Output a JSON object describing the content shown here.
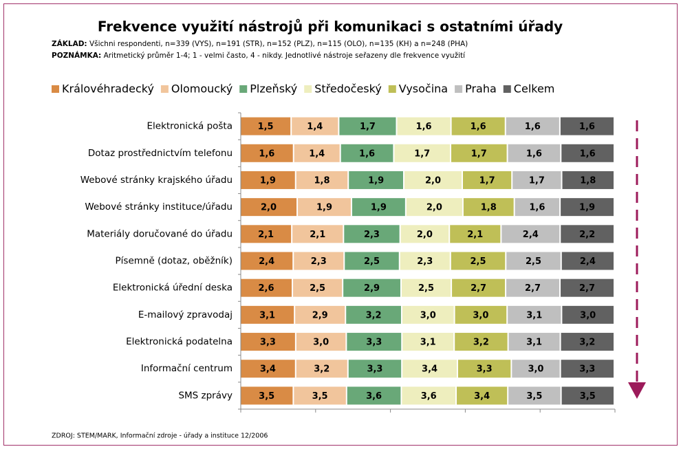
{
  "chart_data": {
    "type": "stacked-bar-100",
    "orientation": "horizontal",
    "title": "Frekvence využití nástrojů při komunikaci s ostatními úřady",
    "base_label": "ZÁKLAD:",
    "base": "Všichni respondenti, n=339 (VYS), n=191 (STR), n=152 (PLZ), n=115 (OLO), n=135 (KH) a n=248 (PHA)",
    "note_label": "POZNÁMKA:",
    "note": "Aritmetický průměr 1-4; 1 - velmi často, 4 - nikdy. Jednotlivé nástroje seřazeny dle frekvence využití",
    "source": "ZDROJ: STEM/MARK, Informační zdroje - úřady a instituce 12/2006",
    "categories": [
      "Elektronická pošta",
      "Dotaz prostřednictvím telefonu",
      "Webové stránky krajského úřadu",
      "Webové stránky instituce/úřadu",
      "Materiály doručované do úřadu",
      "Písemně (dotaz, oběžník)",
      "Elektronická úřední deska",
      "E-mailový zpravodaj",
      "Elektronická podatelna",
      "Informační centrum",
      "SMS zprávy"
    ],
    "xlim": [
      0,
      100
    ],
    "xticks": [
      0,
      20,
      40,
      60,
      80,
      100
    ],
    "series": [
      {
        "name": "Královéhradecký",
        "color": "#d98b45",
        "values": [
          1.5,
          1.6,
          1.9,
          2.0,
          2.1,
          2.4,
          2.6,
          3.1,
          3.3,
          3.4,
          3.5
        ],
        "value_labels": [
          "1,5",
          "1,6",
          "1,9",
          "2,0",
          "2,1",
          "2,4",
          "2,6",
          "3,1",
          "3,3",
          "3,4",
          "3,5"
        ]
      },
      {
        "name": "Olomoucký",
        "color": "#f1c59c",
        "values": [
          1.4,
          1.4,
          1.8,
          1.9,
          2.1,
          2.3,
          2.5,
          2.9,
          3.0,
          3.2,
          3.5
        ],
        "value_labels": [
          "1,4",
          "1,4",
          "1,8",
          "1,9",
          "2,1",
          "2,3",
          "2,5",
          "2,9",
          "3,0",
          "3,2",
          "3,5"
        ]
      },
      {
        "name": "Plzeňský",
        "color": "#69a878",
        "values": [
          1.7,
          1.6,
          1.9,
          1.9,
          2.3,
          2.5,
          2.9,
          3.2,
          3.3,
          3.3,
          3.6
        ],
        "value_labels": [
          "1,7",
          "1,6",
          "1,9",
          "1,9",
          "2,3",
          "2,5",
          "2,9",
          "3,2",
          "3,3",
          "3,3",
          "3,6"
        ]
      },
      {
        "name": "Středočeský",
        "color": "#eeeebe",
        "values": [
          1.6,
          1.7,
          2.0,
          2.0,
          2.0,
          2.3,
          2.5,
          3.0,
          3.1,
          3.4,
          3.6
        ],
        "value_labels": [
          "1,6",
          "1,7",
          "2,0",
          "2,0",
          "2,0",
          "2,3",
          "2,5",
          "3,0",
          "3,1",
          "3,4",
          "3,6"
        ]
      },
      {
        "name": "Vysočina",
        "color": "#bfbf57",
        "values": [
          1.6,
          1.7,
          1.7,
          1.8,
          2.1,
          2.5,
          2.7,
          3.0,
          3.2,
          3.3,
          3.4
        ],
        "value_labels": [
          "1,6",
          "1,7",
          "1,7",
          "1,8",
          "2,1",
          "2,5",
          "2,7",
          "3,0",
          "3,2",
          "3,3",
          "3,4"
        ]
      },
      {
        "name": "Praha",
        "color": "#bfbfbf",
        "values": [
          1.6,
          1.6,
          1.7,
          1.6,
          2.4,
          2.5,
          2.7,
          3.1,
          3.1,
          3.0,
          3.5
        ],
        "value_labels": [
          "1,6",
          "1,6",
          "1,7",
          "1,6",
          "2,4",
          "2,5",
          "2,7",
          "3,1",
          "3,1",
          "3,0",
          "3,5"
        ]
      },
      {
        "name": "Celkem",
        "color": "#616161",
        "values": [
          1.6,
          1.6,
          1.8,
          1.9,
          2.2,
          2.4,
          2.7,
          3.0,
          3.2,
          3.3,
          3.5
        ],
        "value_labels": [
          "1,6",
          "1,6",
          "1,8",
          "1,9",
          "2,2",
          "2,4",
          "2,7",
          "3,0",
          "3,2",
          "3,3",
          "3,5"
        ]
      }
    ]
  }
}
